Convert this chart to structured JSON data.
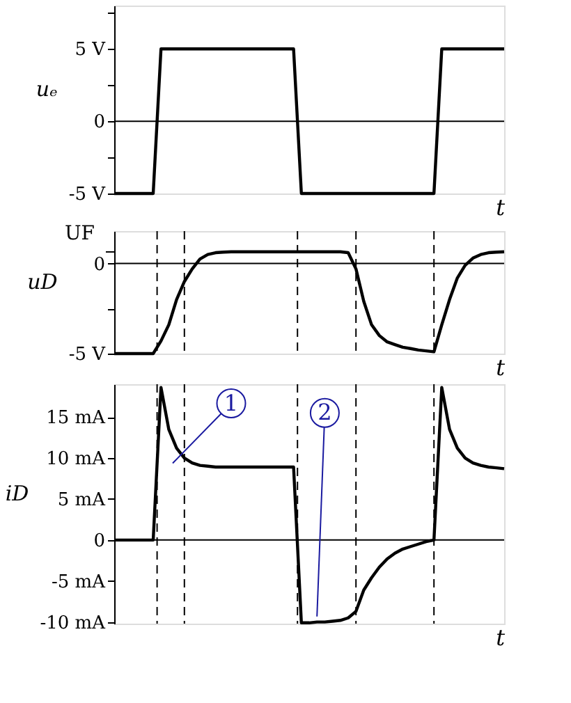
{
  "chart_data": [
    {
      "type": "line",
      "ylabel": "uₑ",
      "xlabel": "t",
      "ylim": [
        -5,
        8
      ],
      "tick_labels": "y",
      "categories": [
        null,
        null,
        null,
        null,
        null,
        null,
        null,
        null,
        null,
        null,
        null,
        null,
        null,
        null,
        null,
        null,
        null,
        null,
        null,
        null,
        null,
        null,
        null,
        null,
        null,
        null,
        null,
        null,
        null,
        null,
        null,
        null,
        null,
        null,
        null,
        null,
        null,
        null,
        null,
        null,
        null,
        null,
        null,
        null,
        null,
        null,
        null,
        null,
        null,
        null,
        null
      ],
      "yticks": [
        {
          "value": -5,
          "label": "-5 V"
        },
        {
          "value": -2.5,
          "label": null
        },
        0,
        {
          "value": 2.5,
          "label": null
        },
        {
          "value": 5,
          "label": "5 V"
        },
        {
          "value": 7.5,
          "label": null
        }
      ],
      "series": [
        {
          "color": "#000000",
          "values": [
            -5,
            -5,
            -5,
            -5,
            -5,
            -5,
            5,
            5,
            5,
            5,
            5,
            5,
            5,
            5,
            5,
            5,
            5,
            5,
            5,
            5,
            5,
            5,
            5,
            5,
            -5,
            -5,
            -5,
            -5,
            -5,
            -5,
            -5,
            -5,
            -5,
            -5,
            -5,
            -5,
            -5,
            -5,
            -5,
            -5,
            -5,
            -5,
            5,
            5,
            5,
            5,
            5,
            5,
            5,
            5,
            5
          ]
        }
      ],
      "ref_lines": [
        {
          "axis": "y",
          "value": 0,
          "color": "#000000",
          "line_style": "solid"
        }
      ]
    },
    {
      "type": "line",
      "ylabel": "uD",
      "xlabel": "t",
      "ylim": [
        -5,
        1.8
      ],
      "tick_labels": "y",
      "categories": [
        null,
        null,
        null,
        null,
        null,
        null,
        null,
        null,
        null,
        null,
        null,
        null,
        null,
        null,
        null,
        null,
        null,
        null,
        null,
        null,
        null,
        null,
        null,
        null,
        null,
        null,
        null,
        null,
        null,
        null,
        null,
        null,
        null,
        null,
        null,
        null,
        null,
        null,
        null,
        null,
        null,
        null,
        null,
        null,
        null,
        null,
        null,
        null,
        null,
        null,
        null
      ],
      "yticks": [
        {
          "value": -5,
          "label": "-5 V"
        },
        {
          "value": -2.5,
          "label": null
        },
        0
      ],
      "annotations": [
        "UF"
      ],
      "grid": "x",
      "series": [
        {
          "color": "#000000",
          "values": [
            -5,
            -5,
            -5,
            -5,
            -5,
            -5,
            -4.3,
            -3.4,
            -2.0,
            -1.0,
            -0.3,
            0.25,
            0.5,
            0.6,
            0.63,
            0.65,
            0.65,
            0.65,
            0.65,
            0.65,
            0.65,
            0.65,
            0.65,
            0.65,
            0.65,
            0.65,
            0.65,
            0.65,
            0.65,
            0.65,
            0.6,
            -0.3,
            -2.1,
            -3.4,
            -4.0,
            -4.35,
            -4.5,
            -4.65,
            -4.72,
            -4.8,
            -4.85,
            -4.9,
            -3.4,
            -2.0,
            -0.8,
            -0.1,
            0.3,
            0.5,
            0.6,
            0.63,
            0.65
          ]
        }
      ],
      "ref_lines": [
        {
          "axis": "y",
          "value": 0,
          "color": "#000000",
          "line_style": "solid"
        }
      ]
    },
    {
      "type": "line",
      "ylabel": "iD",
      "xlabel": "t",
      "ylim": [
        -10.2,
        19
      ],
      "tick_labels": "y",
      "categories": [
        null,
        null,
        null,
        null,
        null,
        null,
        null,
        null,
        null,
        null,
        null,
        null,
        null,
        null,
        null,
        null,
        null,
        null,
        null,
        null,
        null,
        null,
        null,
        null,
        null,
        null,
        null,
        null,
        null,
        null,
        null,
        null,
        null,
        null,
        null,
        null,
        null,
        null,
        null,
        null,
        null,
        null,
        null,
        null,
        null,
        null,
        null,
        null,
        null,
        null,
        null
      ],
      "yticks": [
        {
          "value": -10,
          "label": "-10 mA"
        },
        {
          "value": -5,
          "label": "-5 mA"
        },
        0,
        {
          "value": 5,
          "label": "5 mA"
        },
        {
          "value": 10,
          "label": "10 mA"
        },
        {
          "value": 15,
          "label": "15 mA"
        }
      ],
      "series": [
        {
          "color": "#000000",
          "values": [
            0,
            0,
            0,
            0,
            0,
            0,
            18.6,
            13.5,
            11.2,
            10,
            9.4,
            9.1,
            9.0,
            8.9,
            8.9,
            8.9,
            8.9,
            8.9,
            8.9,
            8.9,
            8.9,
            8.9,
            8.9,
            8.9,
            -10.1,
            -10.1,
            -10,
            -10,
            -9.9,
            -9.8,
            -9.5,
            -8.7,
            -6.1,
            -4.6,
            -3.3,
            -2.3,
            -1.6,
            -1.1,
            -0.8,
            -0.5,
            -0.2,
            0,
            18.6,
            13.5,
            11.2,
            10,
            9.4,
            9.1,
            8.9,
            8.8,
            8.7
          ]
        }
      ],
      "ref_lines": [
        {
          "axis": "y",
          "value": 0,
          "color": "#000000",
          "line_style": "solid"
        }
      ],
      "annotations": [
        "1",
        "2"
      ],
      "grid": "x"
    }
  ]
}
